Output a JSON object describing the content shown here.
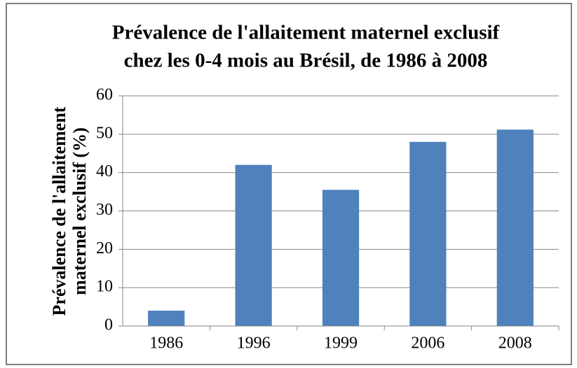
{
  "chart_data": {
    "type": "bar",
    "title": [
      "Prévalence de l'allaitement maternel exclusif",
      "chez les 0-4 mois au Brésil, de 1986 à 2008"
    ],
    "y_label": [
      "Prévalence de l'allaitement",
      "maternel exclusif (%)"
    ],
    "categories": [
      "1986",
      "1996",
      "1999",
      "2006",
      "2008"
    ],
    "values": [
      4,
      42,
      35.5,
      48,
      51.2
    ],
    "color": "#4f81bd",
    "ylim": [
      0,
      60
    ],
    "yticks": [
      0,
      10,
      20,
      30,
      40,
      50,
      60
    ],
    "grid": true
  }
}
